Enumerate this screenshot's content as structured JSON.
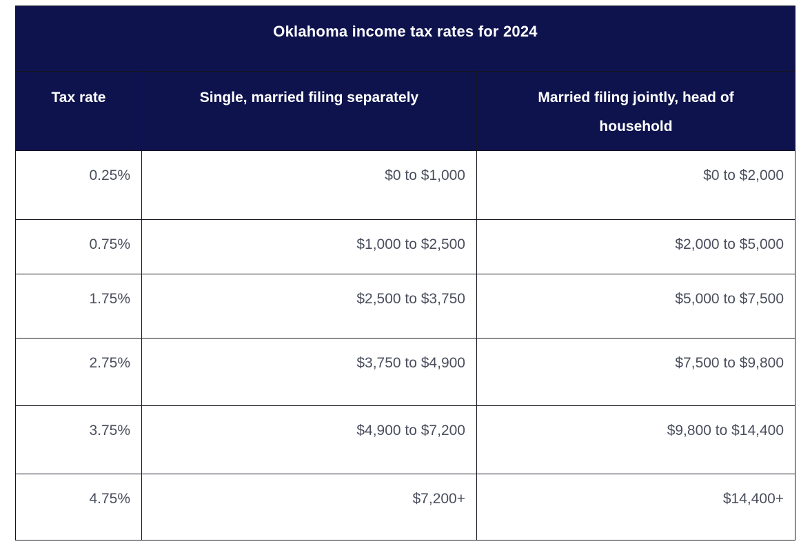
{
  "colors": {
    "header_background": "#0E134E",
    "header_text": "#FFFFFF",
    "body_text": "#4A4E5D",
    "border": "#15151F",
    "page_background": "#FFFFFF"
  },
  "table": {
    "title": "Oklahoma income tax rates for 2024",
    "columns": [
      "Tax rate",
      "Single, married filing separately",
      "Married filing jointly, head of household"
    ],
    "rows": [
      [
        "0.25%",
        "$0 to $1,000",
        "$0 to $2,000"
      ],
      [
        "0.75%",
        "$1,000 to $2,500",
        "$2,000 to $5,000"
      ],
      [
        "1.75%",
        "$2,500 to $3,750",
        "$5,000 to $7,500"
      ],
      [
        "2.75%",
        "$3,750 to $4,900",
        "$7,500 to $9,800"
      ],
      [
        "3.75%",
        "$4,900 to $7,200",
        "$9,800 to $14,400"
      ],
      [
        "4.75%",
        "$7,200+",
        "$14,400+"
      ]
    ]
  },
  "chart_data": {
    "type": "table",
    "title": "Oklahoma income tax rates for 2024",
    "columns": [
      "Tax rate",
      "Single, married filing separately",
      "Married filing jointly, head of household"
    ],
    "rows": [
      {
        "tax_rate": "0.25%",
        "single_married_filing_separately": "$0 to $1,000",
        "married_filing_jointly_head_of_household": "$0 to $2,000"
      },
      {
        "tax_rate": "0.75%",
        "single_married_filing_separately": "$1,000 to $2,500",
        "married_filing_jointly_head_of_household": "$2,000 to $5,000"
      },
      {
        "tax_rate": "1.75%",
        "single_married_filing_separately": "$2,500 to $3,750",
        "married_filing_jointly_head_of_household": "$5,000 to $7,500"
      },
      {
        "tax_rate": "2.75%",
        "single_married_filing_separately": "$3,750 to $4,900",
        "married_filing_jointly_head_of_household": "$7,500 to $9,800"
      },
      {
        "tax_rate": "3.75%",
        "single_married_filing_separately": "$4,900 to $7,200",
        "married_filing_jointly_head_of_household": "$9,800 to $14,400"
      },
      {
        "tax_rate": "4.75%",
        "single_married_filing_separately": "$7,200+",
        "married_filing_jointly_head_of_household": "$14,400+"
      }
    ]
  }
}
